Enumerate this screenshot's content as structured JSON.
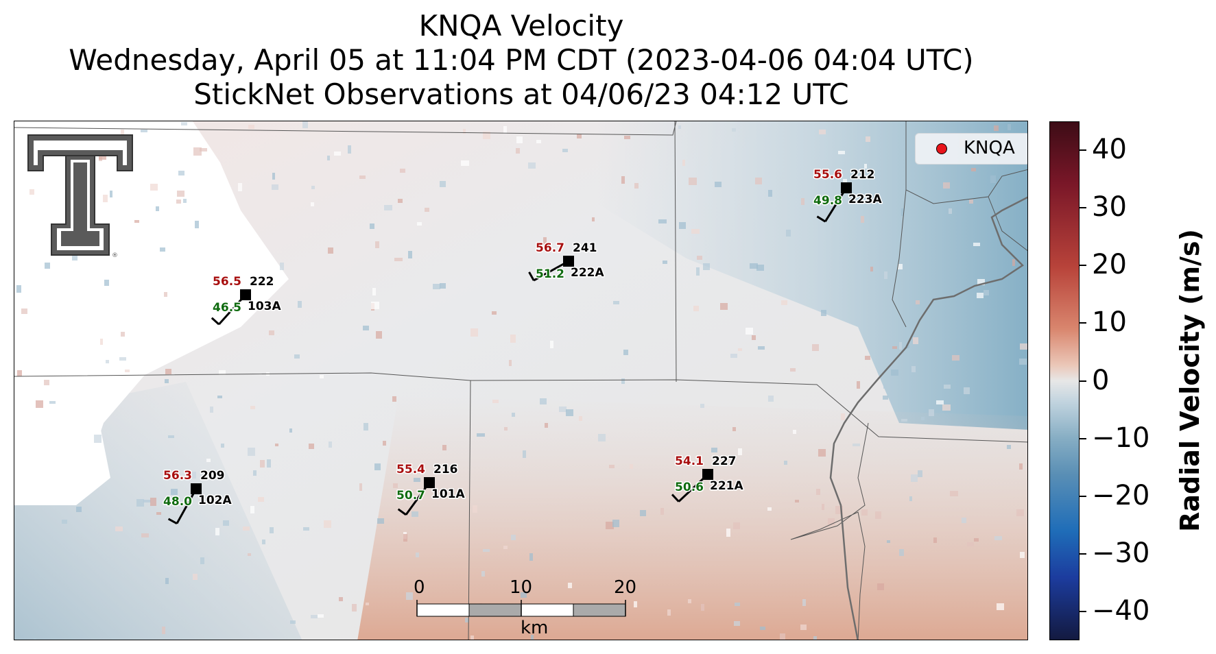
{
  "title": {
    "line1": "KNQA Velocity",
    "line2": "Wednesday, April 05 at 11:04 PM CDT (2023-04-06 04:04 UTC)",
    "line3": "StickNet Observations at 04/06/23 04:12 UTC"
  },
  "legend": {
    "label": "KNQA",
    "marker_color": "#e8141b"
  },
  "logo": {
    "text": "T",
    "name": "texas-tech-double-t-logo"
  },
  "scale_bar": {
    "ticks": [
      "0",
      "10",
      "20"
    ],
    "unit": "km"
  },
  "colorbar": {
    "label": "Radial Velocity (m/s)",
    "ticks": [
      "40",
      "30",
      "20",
      "10",
      "0",
      "−10",
      "−20",
      "−30",
      "−40"
    ],
    "range": [
      -45,
      45
    ]
  },
  "stations": [
    {
      "id": "103A",
      "wind_dir": "222",
      "temp": "56.5",
      "dewpoint": "46.5"
    },
    {
      "id": "222A",
      "wind_dir": "241",
      "temp": "56.7",
      "dewpoint": "51.2"
    },
    {
      "id": "223A",
      "wind_dir": "212",
      "temp": "55.6",
      "dewpoint": "49.8"
    },
    {
      "id": "102A",
      "wind_dir": "209",
      "temp": "56.3",
      "dewpoint": "48.0"
    },
    {
      "id": "101A",
      "wind_dir": "216",
      "temp": "55.4",
      "dewpoint": "50.7"
    },
    {
      "id": "221A",
      "wind_dir": "227",
      "temp": "54.1",
      "dewpoint": "50.6"
    }
  ],
  "colors": {
    "temp_text": "#a80f0f",
    "dewpoint_text": "#0f6b0f",
    "station_marker": "#000000"
  }
}
